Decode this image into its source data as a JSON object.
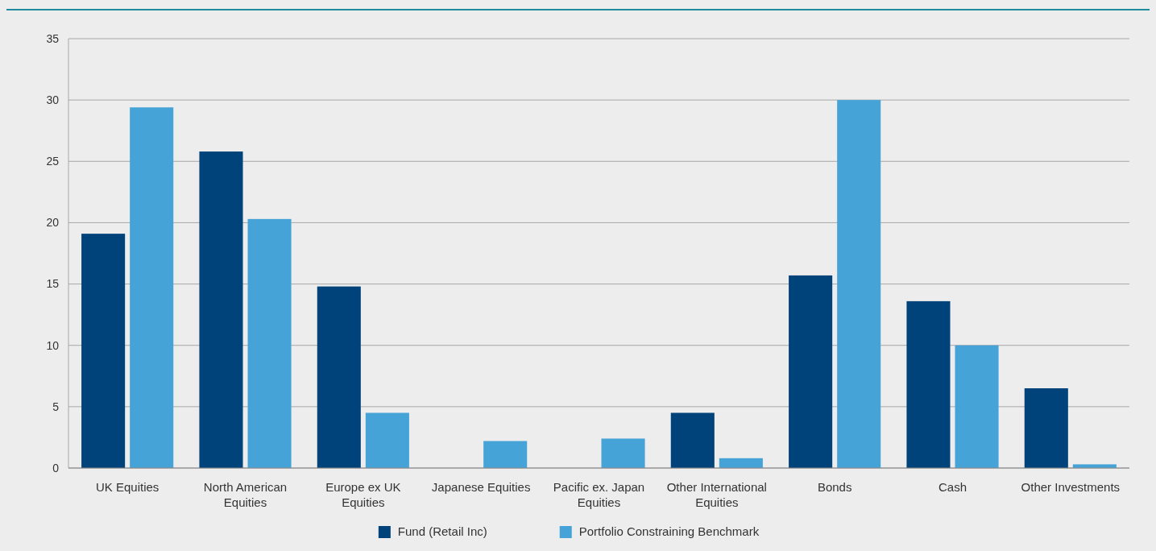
{
  "chart_data": {
    "type": "bar",
    "categories": [
      "UK Equities",
      "North American Equities",
      "Europe ex UK Equities",
      "Japanese Equities",
      "Pacific ex. Japan Equities",
      "Other International Equities",
      "Bonds",
      "Cash",
      "Other Investments"
    ],
    "series": [
      {
        "name": "Fund (Retail Inc)",
        "color": "#00427a",
        "values": [
          19.1,
          25.8,
          14.8,
          0,
          0,
          4.5,
          15.7,
          13.6,
          6.5
        ]
      },
      {
        "name": "Portfolio Constraining Benchmark",
        "color": "#45a3d7",
        "values": [
          29.4,
          20.3,
          4.5,
          2.2,
          2.4,
          0.8,
          30.0,
          10.0,
          0.3
        ]
      }
    ],
    "ylim": [
      0,
      35
    ],
    "yticks": [
      0,
      5,
      10,
      15,
      20,
      25,
      30,
      35
    ],
    "grid": "y",
    "legend": "bottom"
  }
}
